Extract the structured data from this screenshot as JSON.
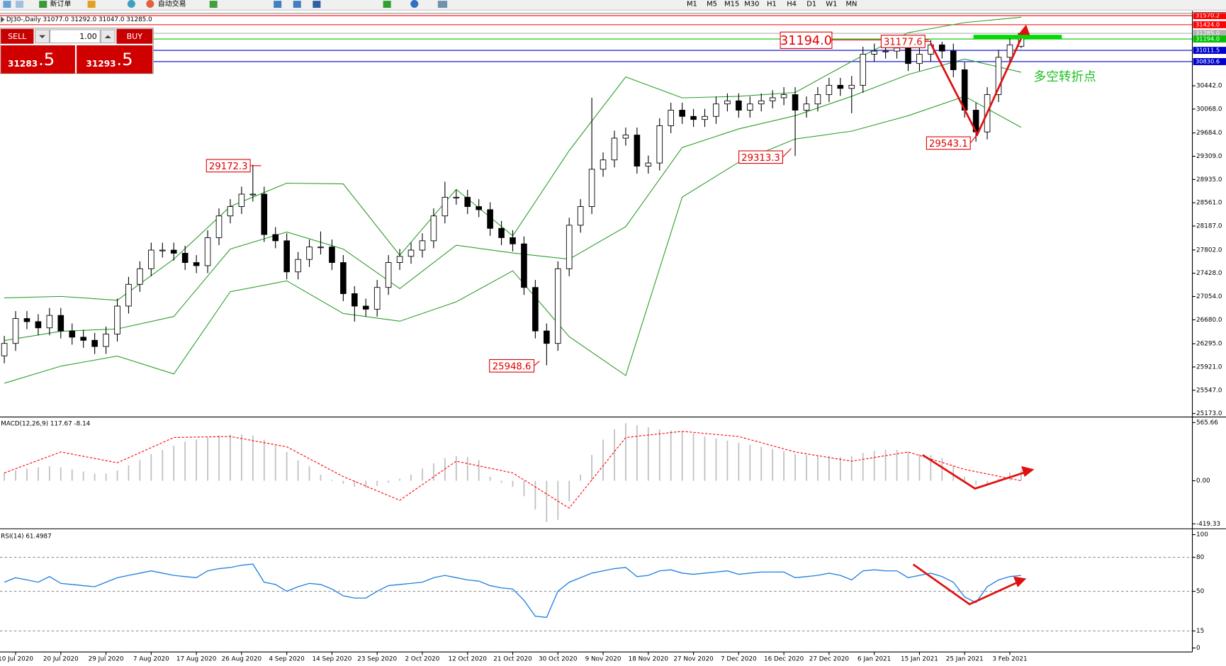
{
  "toolbar": {
    "new_order": "新订单",
    "auto_trading": "自动交易",
    "timeframes": [
      "M1",
      "M5",
      "M15",
      "M30",
      "H1",
      "H4",
      "D1",
      "W1",
      "MN"
    ]
  },
  "trade_panel": {
    "sell": "SELL",
    "buy": "BUY",
    "lot": "1.00",
    "sell_price": "31283",
    "sell_fraction": ".5",
    "buy_price": "31293",
    "buy_fraction": ".5"
  },
  "chart_data": [
    {
      "type": "candlestick",
      "title": "DJ30-,Daily 31077.0 31292.0 31047.0 31285.0",
      "categories": [
        null,
        "10 Jul 2020",
        null,
        null,
        null,
        "20 Jul 2020",
        null,
        null,
        null,
        "29 Jul 2020",
        null,
        null,
        null,
        "7 Aug 2020",
        null,
        null,
        null,
        "17 Aug 2020",
        null,
        null,
        null,
        "26 Aug 2020",
        null,
        null,
        null,
        "4 Sep 2020",
        null,
        null,
        null,
        "14 Sep 2020",
        null,
        null,
        null,
        "23 Sep 2020",
        null,
        null,
        null,
        "2 Oct 2020",
        null,
        null,
        null,
        "12 Oct 2020",
        null,
        null,
        null,
        "21 Oct 2020",
        null,
        null,
        null,
        "30 Oct 2020",
        null,
        null,
        null,
        "9 Nov 2020",
        null,
        null,
        null,
        "18 Nov 2020",
        null,
        null,
        null,
        "27 Nov 2020",
        null,
        null,
        null,
        "7 Dec 2020",
        null,
        null,
        null,
        "16 Dec 2020",
        null,
        null,
        null,
        "27 Dec 2020",
        null,
        null,
        null,
        "6 Jan 2021",
        null,
        null,
        null,
        "15 Jan 2021",
        null,
        null,
        null,
        "25 Jan 2021",
        null,
        null,
        null,
        "3 Feb 2021",
        null
      ],
      "open": [
        26100,
        26300,
        26700,
        26650,
        26550,
        26750,
        26500,
        26400,
        26350,
        26250,
        26450,
        26900,
        27250,
        27500,
        27800,
        27800,
        27750,
        27600,
        27550,
        28000,
        28350,
        28500,
        28700,
        28700,
        28050,
        27950,
        27450,
        27650,
        27850,
        27850,
        27600,
        27100,
        26900,
        26850,
        27200,
        27600,
        27700,
        27800,
        27950,
        28350,
        28650,
        28650,
        28500,
        28450,
        28150,
        28000,
        27900,
        27200,
        26500,
        26300,
        27500,
        28200,
        28500,
        29100,
        29250,
        29600,
        29650,
        29150,
        29200,
        29800,
        30050,
        29950,
        29900,
        29950,
        30150,
        30200,
        30050,
        30150,
        30200,
        30250,
        30300,
        30050,
        30150,
        30300,
        30450,
        30400,
        30450,
        30950,
        31000,
        31000,
        31050,
        30800,
        30950,
        31100,
        31000,
        30700,
        30050,
        29700,
        30300,
        30900,
        31077
      ],
      "high": [
        26420,
        26820,
        26820,
        26770,
        26870,
        26870,
        26620,
        26520,
        26470,
        26570,
        27020,
        27370,
        27620,
        27920,
        27920,
        27920,
        27870,
        27720,
        28120,
        28470,
        28620,
        28820,
        29172.3,
        28820,
        28170,
        28070,
        27770,
        27970,
        28100,
        27970,
        27720,
        27220,
        27020,
        27320,
        27720,
        27820,
        27920,
        28070,
        28470,
        28900,
        28770,
        28770,
        28620,
        28570,
        28270,
        28120,
        28020,
        27320,
        26620,
        27620,
        28320,
        28620,
        30250,
        29370,
        29720,
        29770,
        29770,
        29320,
        29920,
        30170,
        30170,
        30070,
        30070,
        30270,
        30320,
        30320,
        30270,
        30320,
        30370,
        30420,
        30420,
        30270,
        30420,
        30570,
        30570,
        30600,
        31070,
        31120,
        31120,
        31170,
        31170,
        31070,
        31177.6,
        31150,
        31120,
        30820,
        30170,
        30420,
        31020,
        31220,
        31292
      ],
      "low": [
        25980,
        26180,
        26530,
        26430,
        26430,
        26380,
        26280,
        26230,
        26130,
        26130,
        26330,
        26780,
        27130,
        27380,
        27680,
        27630,
        27480,
        27430,
        27430,
        27880,
        28230,
        28380,
        28580,
        27930,
        27830,
        27330,
        27330,
        27530,
        27730,
        27480,
        26980,
        26650,
        26730,
        26730,
        27080,
        27480,
        27580,
        27680,
        27830,
        28230,
        28530,
        28380,
        28330,
        28030,
        27880,
        27780,
        27080,
        26380,
        25948.6,
        26180,
        27380,
        28080,
        28380,
        28980,
        29130,
        29480,
        29030,
        29030,
        29080,
        29680,
        29830,
        29780,
        29780,
        29830,
        30030,
        29930,
        29930,
        30030,
        30080,
        30130,
        29313.3,
        29930,
        30030,
        30180,
        30280,
        30000,
        30330,
        30830,
        30880,
        30880,
        30680,
        30680,
        30830,
        30880,
        30580,
        29930,
        29543.1,
        29580,
        30180,
        30780,
        31047
      ],
      "close": [
        26300,
        26700,
        26650,
        26550,
        26750,
        26500,
        26400,
        26350,
        26250,
        26450,
        26900,
        27250,
        27500,
        27800,
        27800,
        27750,
        27600,
        27550,
        28000,
        28350,
        28500,
        28700,
        28700,
        28050,
        27950,
        27450,
        27650,
        27850,
        27850,
        27600,
        27100,
        26900,
        26850,
        27200,
        27600,
        27700,
        27800,
        27950,
        28350,
        28650,
        28650,
        28500,
        28450,
        28150,
        28000,
        27900,
        27200,
        26500,
        26300,
        27500,
        28200,
        28500,
        29100,
        29250,
        29600,
        29650,
        29150,
        29200,
        29800,
        30050,
        29950,
        29900,
        29950,
        30150,
        30200,
        30050,
        30150,
        30200,
        30250,
        30300,
        30050,
        30150,
        30300,
        30450,
        30400,
        30450,
        30950,
        31000,
        31000,
        31050,
        30800,
        30950,
        31100,
        31000,
        30700,
        30050,
        29700,
        30300,
        30900,
        31100,
        31285
      ],
      "bands": {
        "color": "#2e9e2e",
        "x": [
          0,
          5,
          10,
          15,
          20,
          25,
          30,
          35,
          40,
          45,
          50,
          55,
          60,
          65,
          70,
          75,
          80,
          85,
          90
        ],
        "upper": [
          27031,
          27056,
          26994,
          27655,
          28502,
          28877,
          28864,
          27717,
          28777,
          28029,
          29400,
          30585,
          30248,
          30273,
          30335,
          30834,
          31296,
          31458,
          31545
        ],
        "middle": [
          26345,
          26495,
          26532,
          26732,
          27817,
          28091,
          27817,
          27181,
          27879,
          27754,
          27654,
          28178,
          29450,
          29749,
          29961,
          30273,
          30622,
          30872,
          30660
        ],
        "lower": [
          25659,
          25934,
          26096,
          25809,
          27131,
          27305,
          26782,
          26657,
          26969,
          27467,
          26408,
          25784,
          28652,
          29213,
          29587,
          29712,
          29961,
          30273,
          29774
        ]
      },
      "levels": [
        {
          "value": 31570.2,
          "color": "#ff0000"
        },
        {
          "value": 31424,
          "label": "31424.0",
          "color": "#ff0000"
        },
        {
          "value": 31285,
          "label": "31285.0",
          "color": "#b0b0b0"
        },
        {
          "value": 31194,
          "label": "31194.0",
          "color": "#00c000"
        },
        {
          "value": 31011.5,
          "color": "#0000cc"
        },
        {
          "value": 30830.6,
          "color": "#0000cc"
        }
      ],
      "annotations": [
        "31194.0",
        "31177.6",
        "29172.3",
        "25948.6",
        "29313.3",
        "29543.1",
        "多空转折点"
      ],
      "ylim": [
        25135,
        31595
      ],
      "yticks": [
        {
          "value": 25173,
          "label": "25173.0"
        },
        {
          "value": 25547,
          "label": "25547.0"
        },
        {
          "value": 25921,
          "label": "25921.0"
        },
        {
          "value": 26295,
          "label": "26295.0"
        },
        {
          "value": 26680,
          "label": "26680.0"
        },
        {
          "value": 27054,
          "label": "27054.0"
        },
        {
          "value": 27428,
          "label": "27428.0"
        },
        {
          "value": 27802,
          "label": "27802.0"
        },
        {
          "value": 28187,
          "label": "28187.0"
        },
        {
          "value": 28561,
          "label": "28561.0"
        },
        {
          "value": 28935,
          "label": "28935.0"
        },
        {
          "value": 29309,
          "label": "29309.0"
        },
        {
          "value": 29684,
          "label": "29684.0"
        },
        {
          "value": 30068,
          "label": "30068.0"
        },
        {
          "value": 30442,
          "label": "30442.0"
        }
      ]
    },
    {
      "type": "macd",
      "title": "MACD(12,26,9) 117.67 -8.14",
      "color": "#c0c0c0",
      "values": [
        80,
        100,
        120,
        130,
        140,
        130,
        110,
        90,
        70,
        70,
        100,
        150,
        200,
        260,
        300,
        340,
        380,
        400,
        420,
        440,
        450,
        450,
        440,
        400,
        340,
        280,
        200,
        140,
        60,
        10,
        -30,
        -60,
        -70,
        -50,
        -20,
        20,
        60,
        120,
        170,
        220,
        240,
        230,
        200,
        40,
        -20,
        -60,
        -150,
        -280,
        -400,
        -380,
        -200,
        60,
        250,
        400,
        500,
        560,
        540,
        520,
        500,
        490,
        480,
        460,
        430,
        410,
        390,
        370,
        350,
        330,
        310,
        290,
        260,
        250,
        240,
        240,
        230,
        240,
        270,
        290,
        300,
        300,
        280,
        260,
        250,
        220,
        150,
        40,
        -40,
        -30,
        20,
        80,
        100
      ],
      "signal": {
        "color": "#ff0000",
        "x": [
          0,
          5,
          10,
          15,
          20,
          25,
          30,
          35,
          40,
          45,
          50,
          55,
          60,
          65,
          70,
          75,
          80,
          85,
          90
        ],
        "values": [
          76,
          280,
          175,
          420,
          430,
          330,
          40,
          -190,
          190,
          76,
          -266,
          420,
          480,
          430,
          280,
          190,
          280,
          110,
          0
        ]
      },
      "ylim": [
        -456,
        608
      ],
      "yticks": [
        565.66,
        {
          "value": 0,
          "label": "0.00"
        },
        -419.33
      ]
    },
    {
      "type": "line",
      "title": "RSI(14) 61.4987",
      "color": "#1e7fe0",
      "level_lines": true,
      "values": [
        58,
        62,
        60,
        58,
        63,
        57,
        56,
        55,
        54,
        58,
        62,
        64,
        66,
        68,
        66,
        64,
        63,
        62,
        68,
        70,
        71,
        73,
        74,
        58,
        56,
        50,
        54,
        57,
        56,
        52,
        46,
        44,
        44,
        50,
        55,
        56,
        57,
        58,
        62,
        64,
        62,
        60,
        59,
        55,
        53,
        52,
        42,
        28,
        27,
        50,
        58,
        62,
        66,
        68,
        70,
        71,
        63,
        64,
        68,
        69,
        66,
        65,
        66,
        67,
        68,
        65,
        66,
        67,
        67,
        67,
        62,
        63,
        64,
        66,
        64,
        60,
        68,
        69,
        68,
        68,
        62,
        64,
        66,
        63,
        58,
        45,
        40,
        54,
        60,
        63,
        64
      ],
      "ylim": [
        -2.1,
        103.4
      ],
      "yticks": [
        100,
        80,
        50,
        15,
        0
      ]
    }
  ]
}
